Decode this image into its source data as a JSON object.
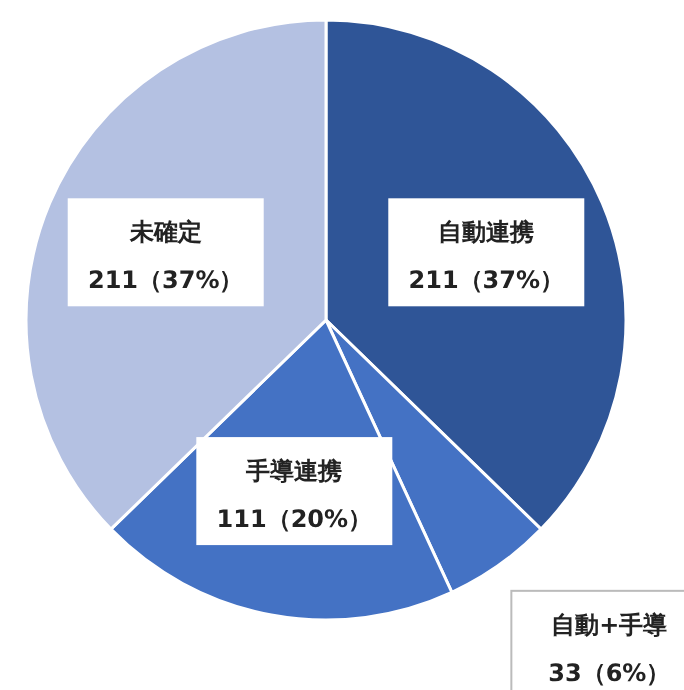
{
  "chart_data": {
    "type": "pie",
    "categories": [
      "自動連携",
      "自動+手導",
      "手導連携",
      "未確定"
    ],
    "values": [
      211,
      33,
      111,
      211
    ],
    "colors": [
      "#2f5597",
      "#4472c4",
      "#4472c4",
      "#b4c1e2"
    ],
    "value_labels": [
      "211（37%）",
      "33（6%）",
      "111（20%）",
      "211（37%）"
    ]
  }
}
